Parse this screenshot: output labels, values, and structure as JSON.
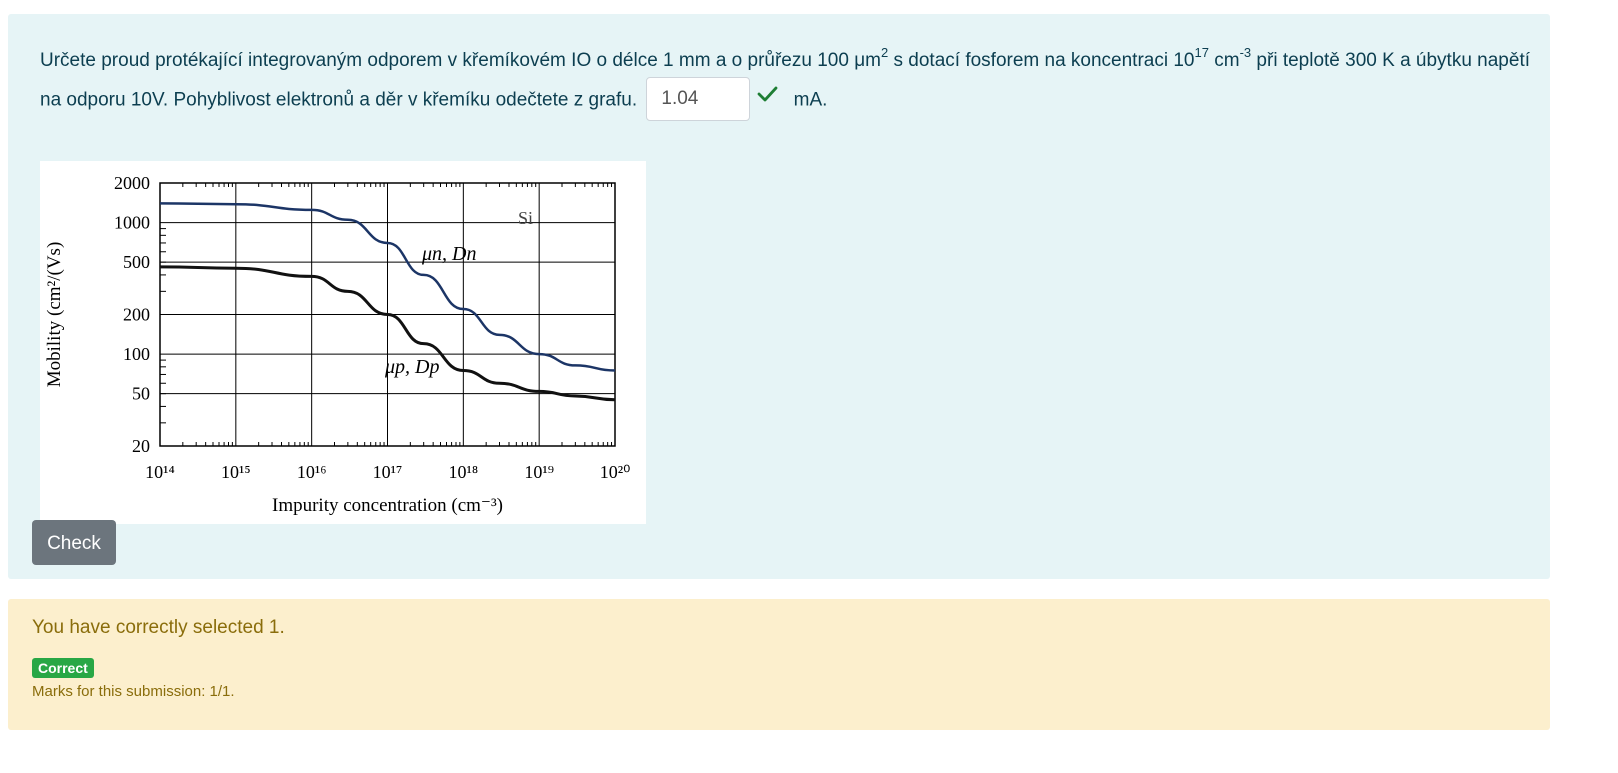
{
  "question": {
    "text_part1": "Určete proud protékající integrovaným odporem v křemíkovém IO o délce 1 mm a o průřezu 100 μm",
    "sup1": "2",
    "text_part2": " s dotací fosforem na koncentraci 10",
    "sup2": "17",
    "text_part3": " cm",
    "sup3": "-3",
    "text_part4": " při teplotě 300 K a úbytku napětí na odporu 10V. Pohyblivost elektronů a děr v křemíku odečtete z grafu.",
    "answer_value": "1.04",
    "unit": "mA.",
    "answer_status_icon": "check-icon",
    "status_color": "#1e7e34"
  },
  "chart_data": {
    "type": "line",
    "xlabel": "Impurity concentration (cm⁻³)",
    "ylabel": "Mobility (cm²/(Vs)",
    "annotation": "Si",
    "x_scale": "log",
    "y_scale": "log",
    "xlim": [
      100000000000000.0,
      1e+20
    ],
    "ylim": [
      20,
      2000
    ],
    "x_ticks": [
      "10¹⁴",
      "10¹⁵",
      "10¹⁶",
      "10¹⁷",
      "10¹⁸",
      "10¹⁹",
      "10²⁰"
    ],
    "y_ticks": [
      "2000",
      "1000",
      "500",
      "200",
      "100",
      "50",
      "20"
    ],
    "grid": true,
    "series": [
      {
        "name": "μn, Dn",
        "color": "#1c3566",
        "x": [
          100000000000000.0,
          1000000000000000.0,
          1e+16,
          3e+16,
          1e+17,
          3e+17,
          1e+18,
          3e+18,
          1e+19,
          3e+19,
          1e+20
        ],
        "y": [
          1400,
          1380,
          1250,
          1050,
          700,
          400,
          220,
          140,
          100,
          82,
          75
        ]
      },
      {
        "name": "μp, Dp",
        "color": "#111111",
        "x": [
          100000000000000.0,
          1000000000000000.0,
          1e+16,
          3e+16,
          1e+17,
          3e+17,
          1e+18,
          3e+18,
          1e+19,
          3e+19,
          1e+20
        ],
        "y": [
          460,
          450,
          390,
          300,
          200,
          120,
          75,
          60,
          52,
          48,
          45
        ]
      }
    ]
  },
  "check_button": "Check",
  "feedback": {
    "text": "You have correctly selected 1.",
    "badge": "Correct",
    "marks": "Marks for this submission: 1/1."
  }
}
